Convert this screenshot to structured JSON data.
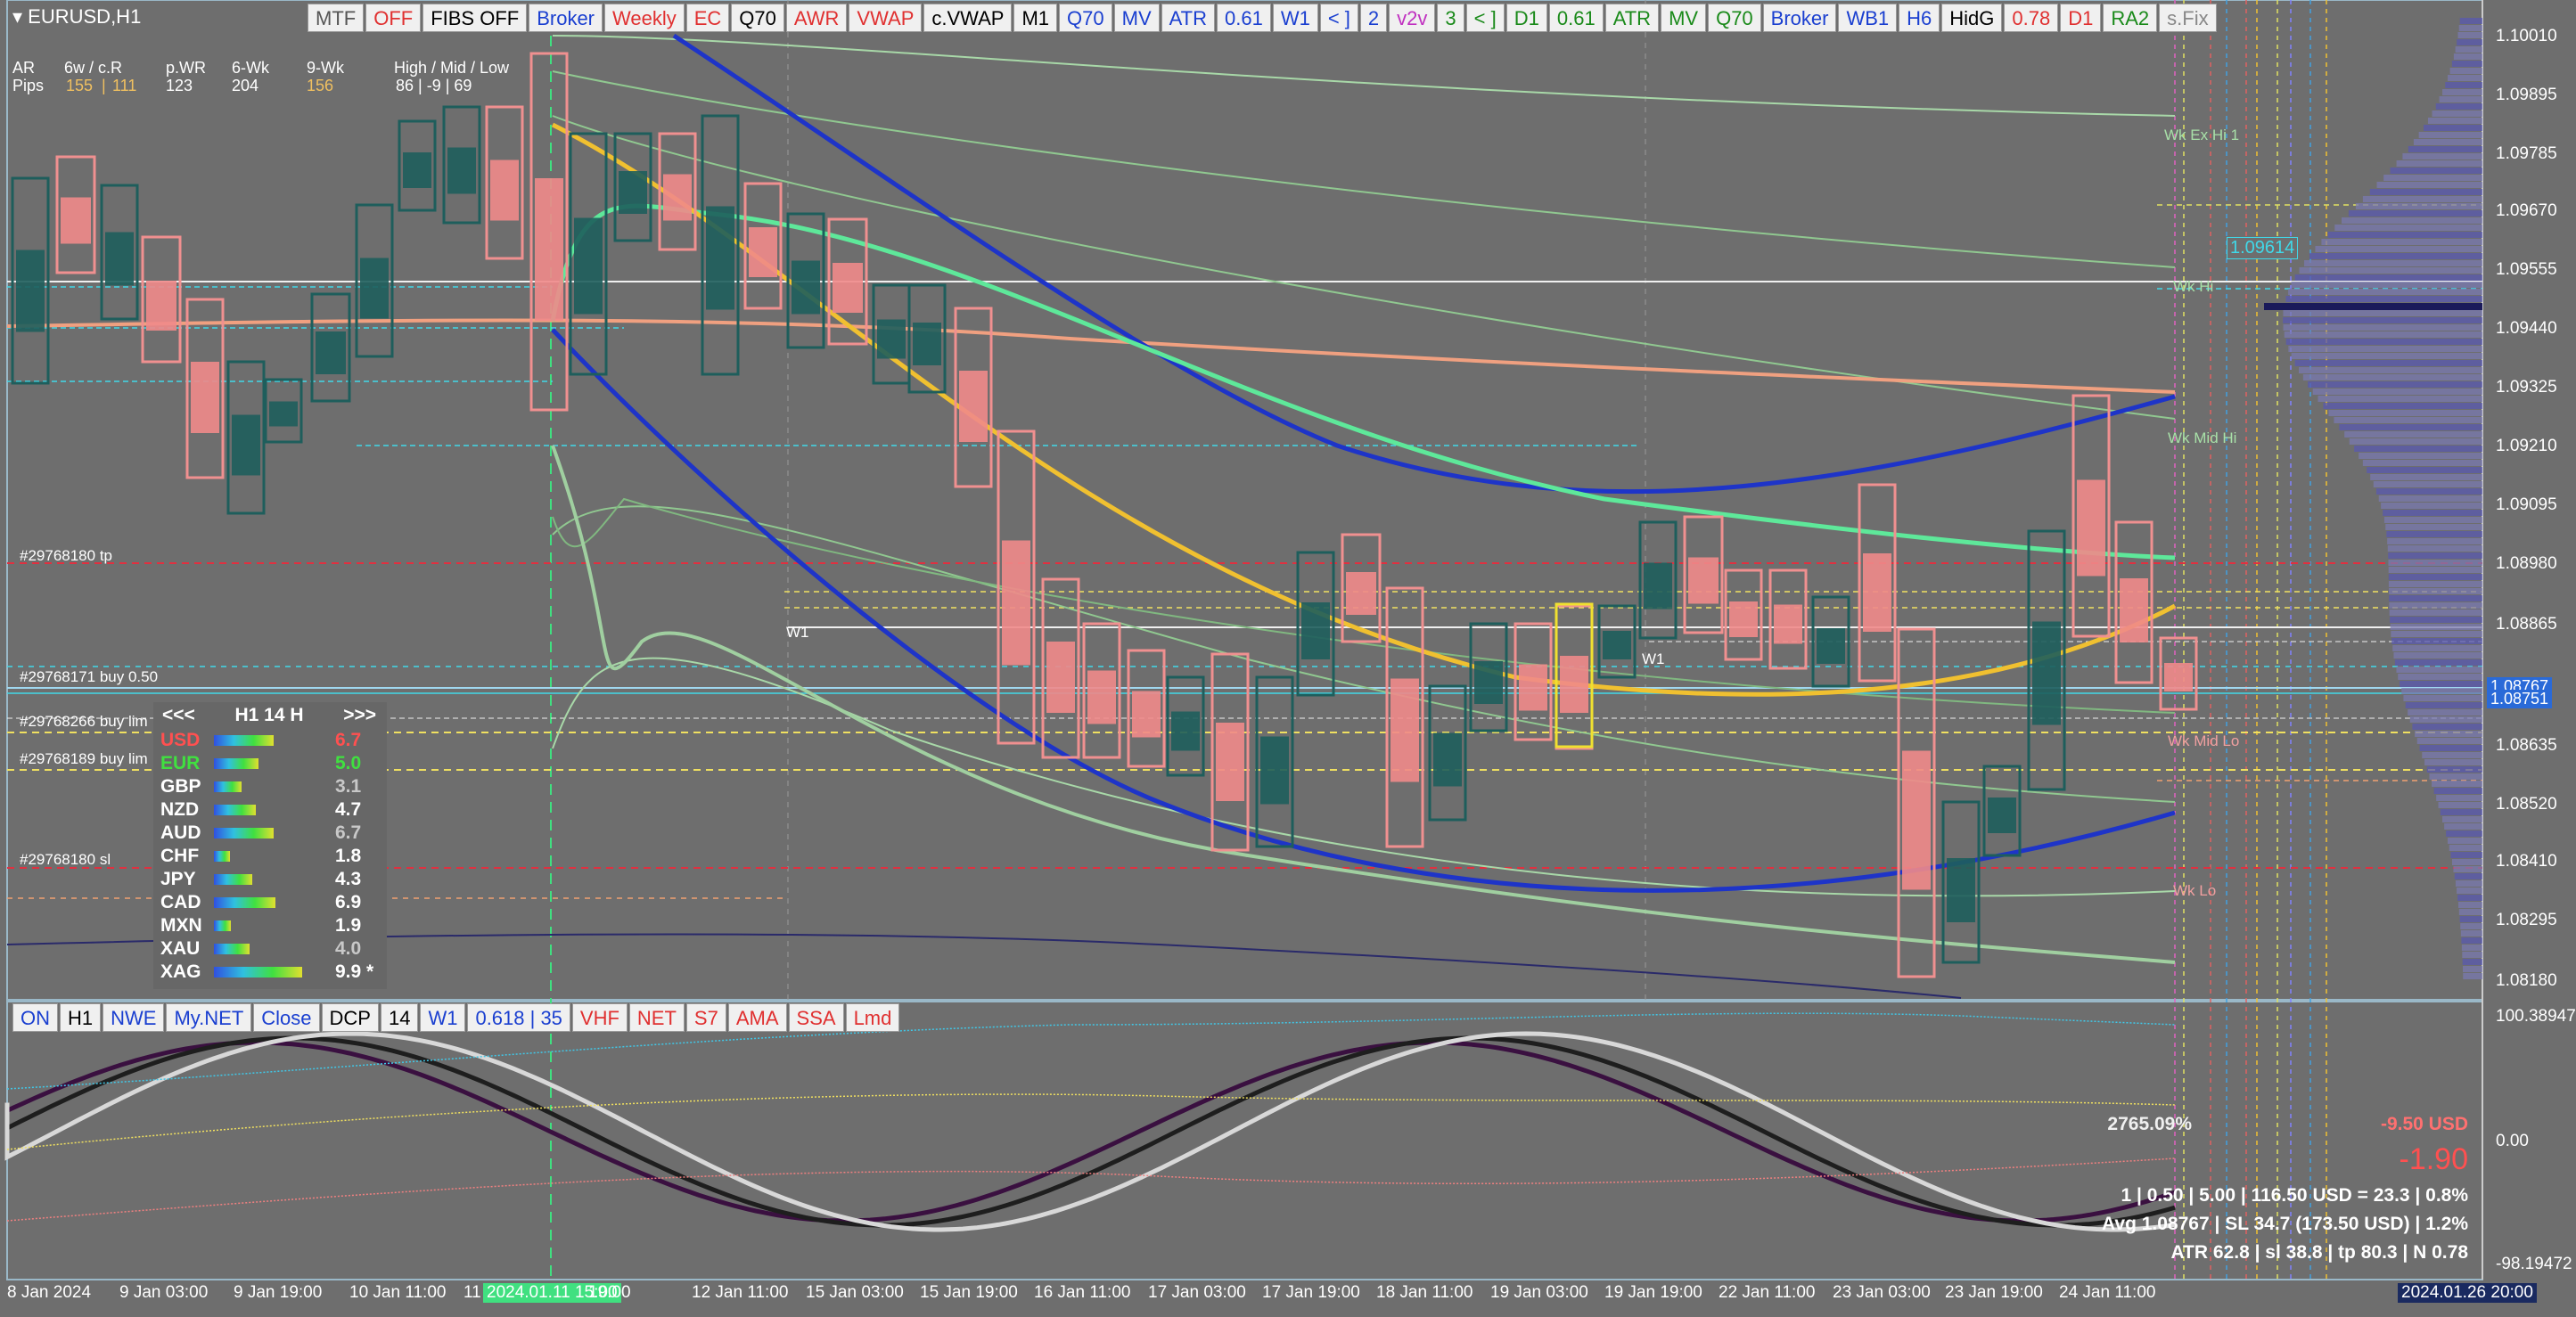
{
  "symbol": "EURUSD,H1",
  "topbar": [
    {
      "label": "MTF",
      "color": "#555555"
    },
    {
      "label": "OFF",
      "color": "#e03030"
    },
    {
      "label": "FIBS OFF",
      "color": "#000000"
    },
    {
      "label": "Broker",
      "color": "#1a3fd0"
    },
    {
      "label": "Weekly",
      "color": "#e03030"
    },
    {
      "label": "EC",
      "color": "#e03030"
    },
    {
      "label": "Q70",
      "color": "#000000"
    },
    {
      "label": "AWR",
      "color": "#e03030"
    },
    {
      "label": "VWAP",
      "color": "#e03030"
    },
    {
      "label": "c.VWAP",
      "color": "#000000"
    },
    {
      "label": "M1",
      "color": "#000000"
    },
    {
      "label": "Q70",
      "color": "#1a3fd0"
    },
    {
      "label": "MV",
      "color": "#1a3fd0"
    },
    {
      "label": "ATR",
      "color": "#1a3fd0"
    },
    {
      "label": "0.61",
      "color": "#1a3fd0"
    },
    {
      "label": "W1",
      "color": "#1a3fd0"
    },
    {
      "label": "< ]",
      "color": "#1a3fd0"
    },
    {
      "label": "2",
      "color": "#1a3fd0"
    },
    {
      "label": "v2v",
      "color": "#c030c0"
    },
    {
      "label": "3",
      "color": "#1a8a1a"
    },
    {
      "label": "< ]",
      "color": "#1a8a1a"
    },
    {
      "label": "D1",
      "color": "#1a8a1a"
    },
    {
      "label": "0.61",
      "color": "#1a8a1a"
    },
    {
      "label": "ATR",
      "color": "#1a8a1a"
    },
    {
      "label": "MV",
      "color": "#1a8a1a"
    },
    {
      "label": "Q70",
      "color": "#1a8a1a"
    },
    {
      "label": "Broker",
      "color": "#1a3fd0"
    },
    {
      "label": "WB1",
      "color": "#1a3fd0"
    },
    {
      "label": "H6",
      "color": "#1a3fd0"
    },
    {
      "label": "HidG",
      "color": "#000000"
    },
    {
      "label": "0.78",
      "color": "#e03030"
    },
    {
      "label": "D1",
      "color": "#e03030"
    },
    {
      "label": "RA2",
      "color": "#1a8a1a"
    },
    {
      "label": "s.Fix",
      "color": "#888888"
    }
  ],
  "subbar": [
    {
      "label": "ON",
      "color": "#1a3fd0"
    },
    {
      "label": "H1",
      "color": "#000000"
    },
    {
      "label": "NWE",
      "color": "#1a3fd0"
    },
    {
      "label": "My.NET",
      "color": "#1a3fd0"
    },
    {
      "label": "Close",
      "color": "#1a3fd0"
    },
    {
      "label": "DCP",
      "color": "#000000"
    },
    {
      "label": "14",
      "color": "#000000"
    },
    {
      "label": "W1",
      "color": "#1a3fd0"
    },
    {
      "label": "0.618 | 35",
      "color": "#1a3fd0"
    },
    {
      "label": "VHF",
      "color": "#e03030"
    },
    {
      "label": "NET",
      "color": "#e03030"
    },
    {
      "label": "S7",
      "color": "#e03030"
    },
    {
      "label": "AMA",
      "color": "#e03030"
    },
    {
      "label": "SSA",
      "color": "#e03030"
    },
    {
      "label": "Lmd",
      "color": "#e03030"
    }
  ],
  "stats": {
    "ar": "AR",
    "pips": "Pips",
    "h1": "6w / c.R",
    "v1a": "155",
    "v1b": "111",
    "h2": "p.WR",
    "v2": "123",
    "h3": "6-Wk",
    "v3": "204",
    "h4": "9-Wk",
    "v4": "156",
    "h5": "High / Mid / Low",
    "v5": "86  |  -9  |  69"
  },
  "currency_panel": {
    "prev": "<<<",
    "tf": "H1  14  H",
    "next": ">>>",
    "rows": [
      {
        "code": "USD",
        "value": "6.7",
        "code_color": "#ff5050",
        "val_color": "#ff5050",
        "fill": 0.67
      },
      {
        "code": "EUR",
        "value": "5.0",
        "code_color": "#40e040",
        "val_color": "#40e040",
        "fill": 0.5
      },
      {
        "code": "GBP",
        "value": "3.1",
        "code_color": "#ffffff",
        "val_color": "#c8c8c8",
        "fill": 0.31
      },
      {
        "code": "NZD",
        "value": "4.7",
        "code_color": "#ffffff",
        "val_color": "#ffffff",
        "fill": 0.47
      },
      {
        "code": "AUD",
        "value": "6.7",
        "code_color": "#ffffff",
        "val_color": "#c8c8c8",
        "fill": 0.67
      },
      {
        "code": "CHF",
        "value": "1.8",
        "code_color": "#ffffff",
        "val_color": "#ffffff",
        "fill": 0.18
      },
      {
        "code": "JPY",
        "value": "4.3",
        "code_color": "#ffffff",
        "val_color": "#ffffff",
        "fill": 0.43
      },
      {
        "code": "CAD",
        "value": "6.9",
        "code_color": "#ffffff",
        "val_color": "#ffffff",
        "fill": 0.69
      },
      {
        "code": "MXN",
        "value": "1.9",
        "code_color": "#ffffff",
        "val_color": "#ffffff",
        "fill": 0.19
      },
      {
        "code": "XAU",
        "value": "4.0",
        "code_color": "#ffffff",
        "val_color": "#c8c8c8",
        "fill": 0.4
      },
      {
        "code": "XAG",
        "value": "9.9 *",
        "code_color": "#ffffff",
        "val_color": "#ffffff",
        "fill": 0.99
      }
    ]
  },
  "trade_labels": {
    "tp": "#29768180 tp",
    "buy050": "#29768171 buy 0.50",
    "buylim1": "#29768266 buy lim",
    "buylim2": "#29768189 buy lim",
    "sl": "#29768180 sl"
  },
  "level_labels": {
    "w1a": "W1",
    "w1b": "W1",
    "wk_ex_hi": "Wk Ex Hi 1",
    "wk_hi": "Wk Hi",
    "wk_mid_hi": "Wk Mid Hi",
    "wk_mid_lo": "Wk Mid Lo",
    "wk_lo": "Wk Lo",
    "price_box": "1.09614"
  },
  "price_axis": {
    "ticks": [
      "1.10010",
      "1.09895",
      "1.09785",
      "1.09670",
      "1.09555",
      "1.09440",
      "1.09325",
      "1.09210",
      "1.09095",
      "1.08980",
      "1.08865",
      "1.08635",
      "1.08520",
      "1.08410",
      "1.08295",
      "1.08180"
    ],
    "bid": "1.08767",
    "ask": "1.08751"
  },
  "osc_axis": {
    "top": "100.38947",
    "mid": "0.00",
    "bot": "-98.19472"
  },
  "time_axis": {
    "ticks": [
      "8 Jan 2024",
      "9 Jan 03:00",
      "9 Jan 19:00",
      "10 Jan 11:00",
      "11",
      "2024.01.11 15:00",
      "19:00",
      "12 Jan 11:00",
      "15 Jan 03:00",
      "15 Jan 19:00",
      "16 Jan 11:00",
      "17 Jan 03:00",
      "17 Jan 19:00",
      "18 Jan 11:00",
      "19 Jan 03:00",
      "19 Jan 19:00",
      "22 Jan 11:00",
      "23 Jan 03:00",
      "23 Jan 19:00",
      "24 Jan 11:00"
    ],
    "corner": "2024.01.26 20:00"
  },
  "info_block": {
    "pct": "2765.09%",
    "usd": "-9.50 USD",
    "big": "-1.90",
    "line1": "1  |  0.50  |  5.00  |  116.50 USD = 23.3  |  0.8%",
    "line2": "Avg 1.08767  |  SL 34.7 (173.50 USD)  |  1.2%",
    "line3": "ATR 62.8  |  sl 38.8  |  tp 80.3  |  N 0.78"
  },
  "colors": {
    "bull": "#1e5e5c",
    "bear": "#f08a8a",
    "bg": "#6e6e6e",
    "blue_curve": "#1e34c8",
    "green_curve": "#5ee89a",
    "yellow_curve": "#f0c030"
  }
}
